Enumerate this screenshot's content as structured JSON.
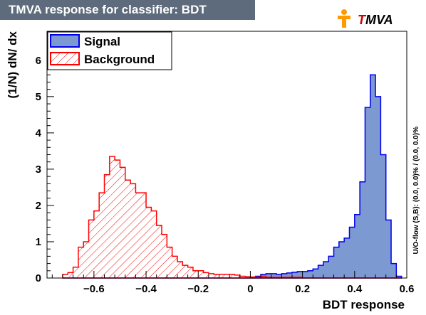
{
  "title": "TMVA response for classifier: BDT",
  "logo": {
    "text": "TMVA",
    "brand_color": "#ff9900",
    "accent_color": "#cc0000",
    "icon": "tmva-figure-icon"
  },
  "chart_data": {
    "type": "histogram",
    "xlabel": "BDT response",
    "ylabel": "(1/N) dN/ dx",
    "xlim": [
      -0.78,
      0.6
    ],
    "ylim": [
      0,
      6.8
    ],
    "x_ticks": [
      -0.6,
      -0.4,
      -0.2,
      0,
      0.2,
      0.4,
      0.6
    ],
    "x_tick_labels": [
      "−0.6",
      "−0.4",
      "−0.2",
      "0",
      "0.2",
      "0.4",
      "0.6"
    ],
    "y_ticks": [
      0,
      1,
      2,
      3,
      4,
      5,
      6
    ],
    "y_tick_labels": [
      "0",
      "1",
      "2",
      "3",
      "4",
      "5",
      "6"
    ],
    "bin_edges_start": -0.72,
    "bin_width": 0.02,
    "legend_position": "top-left",
    "side_note": "U/O-flow (S,B): (0.0, 0.0)% / (0.0, 0.0)%",
    "series": [
      {
        "name": "Signal",
        "fill": "#7d99d1",
        "line": "#0000ee",
        "style": "solid",
        "values": [
          0,
          0,
          0,
          0,
          0,
          0,
          0,
          0,
          0,
          0,
          0,
          0,
          0,
          0,
          0,
          0,
          0,
          0,
          0,
          0,
          0,
          0,
          0,
          0,
          0,
          0,
          0,
          0,
          0,
          0,
          0,
          0,
          0,
          0,
          0,
          0,
          0.02,
          0.05,
          0.1,
          0.12,
          0.12,
          0.1,
          0.12,
          0.14,
          0.16,
          0.18,
          0.18,
          0.2,
          0.25,
          0.35,
          0.45,
          0.6,
          0.85,
          1.0,
          1.1,
          1.4,
          1.75,
          2.65,
          4.7,
          5.6,
          5.0,
          3.4,
          1.6,
          0.4,
          0.05
        ]
      },
      {
        "name": "Background",
        "fill": "#ff0000",
        "line": "#ff0000",
        "style": "hatched",
        "values": [
          0.1,
          0.15,
          0.3,
          0.85,
          1.0,
          1.6,
          1.85,
          2.35,
          2.85,
          3.35,
          3.25,
          3.05,
          2.7,
          2.6,
          2.35,
          2.35,
          1.95,
          1.85,
          1.45,
          1.2,
          0.85,
          0.6,
          0.45,
          0.35,
          0.3,
          0.2,
          0.2,
          0.15,
          0.12,
          0.1,
          0.1,
          0.1,
          0.1,
          0.08,
          0.05,
          0.04,
          0.03,
          0.02,
          0.05,
          0.02,
          0.02,
          0.02,
          0.02,
          0.02,
          0.02,
          0.02,
          0,
          0,
          0,
          0,
          0,
          0,
          0,
          0,
          0,
          0,
          0,
          0,
          0,
          0,
          0,
          0,
          0,
          0,
          0
        ]
      }
    ]
  }
}
